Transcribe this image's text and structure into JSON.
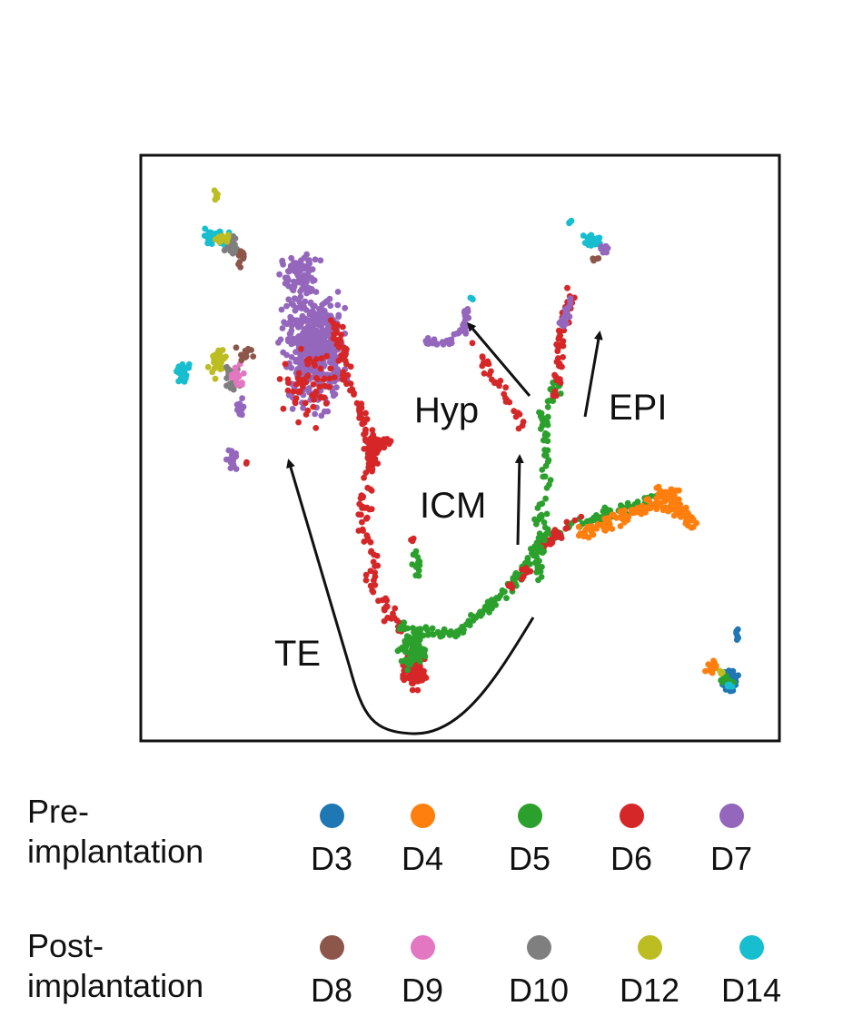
{
  "chart_data": {
    "type": "scatter",
    "annotations": [
      "Hyp",
      "EPI",
      "ICM",
      "TE"
    ],
    "series": [
      {
        "name": "D3",
        "stage": "pre",
        "color": "#1f77b4"
      },
      {
        "name": "D4",
        "stage": "pre",
        "color": "#ff7f0e"
      },
      {
        "name": "D5",
        "stage": "pre",
        "color": "#2ca02c"
      },
      {
        "name": "D6",
        "stage": "pre",
        "color": "#d62728"
      },
      {
        "name": "D7",
        "stage": "pre",
        "color": "#9467bd"
      },
      {
        "name": "D8",
        "stage": "post",
        "color": "#8c564b"
      },
      {
        "name": "D9",
        "stage": "post",
        "color": "#e377c2"
      },
      {
        "name": "D10",
        "stage": "post",
        "color": "#7f7f7f"
      },
      {
        "name": "D12",
        "stage": "post",
        "color": "#bcbd22"
      },
      {
        "name": "D14",
        "stage": "post",
        "color": "#17becf"
      }
    ],
    "grid": false,
    "axes_visible": false
  },
  "legend": {
    "pre_label": "Pre-\nimplantation",
    "post_label": "Post-\nimplantation"
  }
}
